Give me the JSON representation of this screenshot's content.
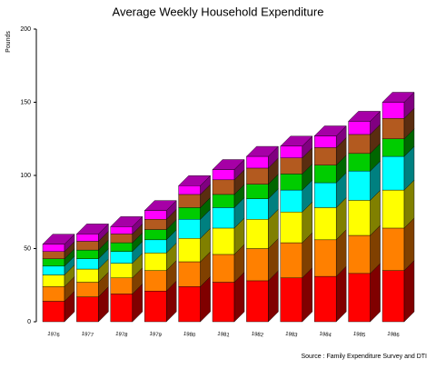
{
  "chart_data": {
    "type": "bar3d_stacked",
    "title": "Average Weekly Household Expenditure",
    "y_label": "Pounds",
    "source": "Source : Family Expenditure Survey and DTI",
    "categories": [
      "1976",
      "1977",
      "1978",
      "1979",
      "1980",
      "1981",
      "1982",
      "1983",
      "1984",
      "1985",
      "1986"
    ],
    "series": [
      {
        "color": "#ff0000",
        "values": [
          14,
          17,
          19,
          21,
          24,
          27,
          28,
          30,
          31,
          33,
          35
        ]
      },
      {
        "color": "#ff8000",
        "values": [
          10,
          10,
          11,
          14,
          17,
          19,
          22,
          24,
          25,
          26,
          29
        ]
      },
      {
        "color": "#ffff00",
        "values": [
          8,
          9,
          10,
          12,
          16,
          18,
          20,
          21,
          22,
          24,
          26
        ]
      },
      {
        "color": "#00ffff",
        "values": [
          6,
          7,
          8,
          9,
          13,
          14,
          14,
          15,
          17,
          20,
          23
        ]
      },
      {
        "color": "#00cc00",
        "values": [
          5,
          6,
          6,
          7,
          8,
          9,
          10,
          11,
          12,
          12,
          12
        ]
      },
      {
        "color": "#b35a1f",
        "values": [
          5,
          6,
          6,
          7,
          9,
          10,
          11,
          11,
          12,
          13,
          14
        ]
      },
      {
        "color": "#ff00ff",
        "values": [
          5,
          5,
          5,
          6,
          6,
          7,
          8,
          8,
          8,
          9,
          11
        ]
      }
    ],
    "ylim": [
      0,
      200
    ],
    "yticks": [
      0,
      50,
      100,
      150,
      200
    ]
  }
}
